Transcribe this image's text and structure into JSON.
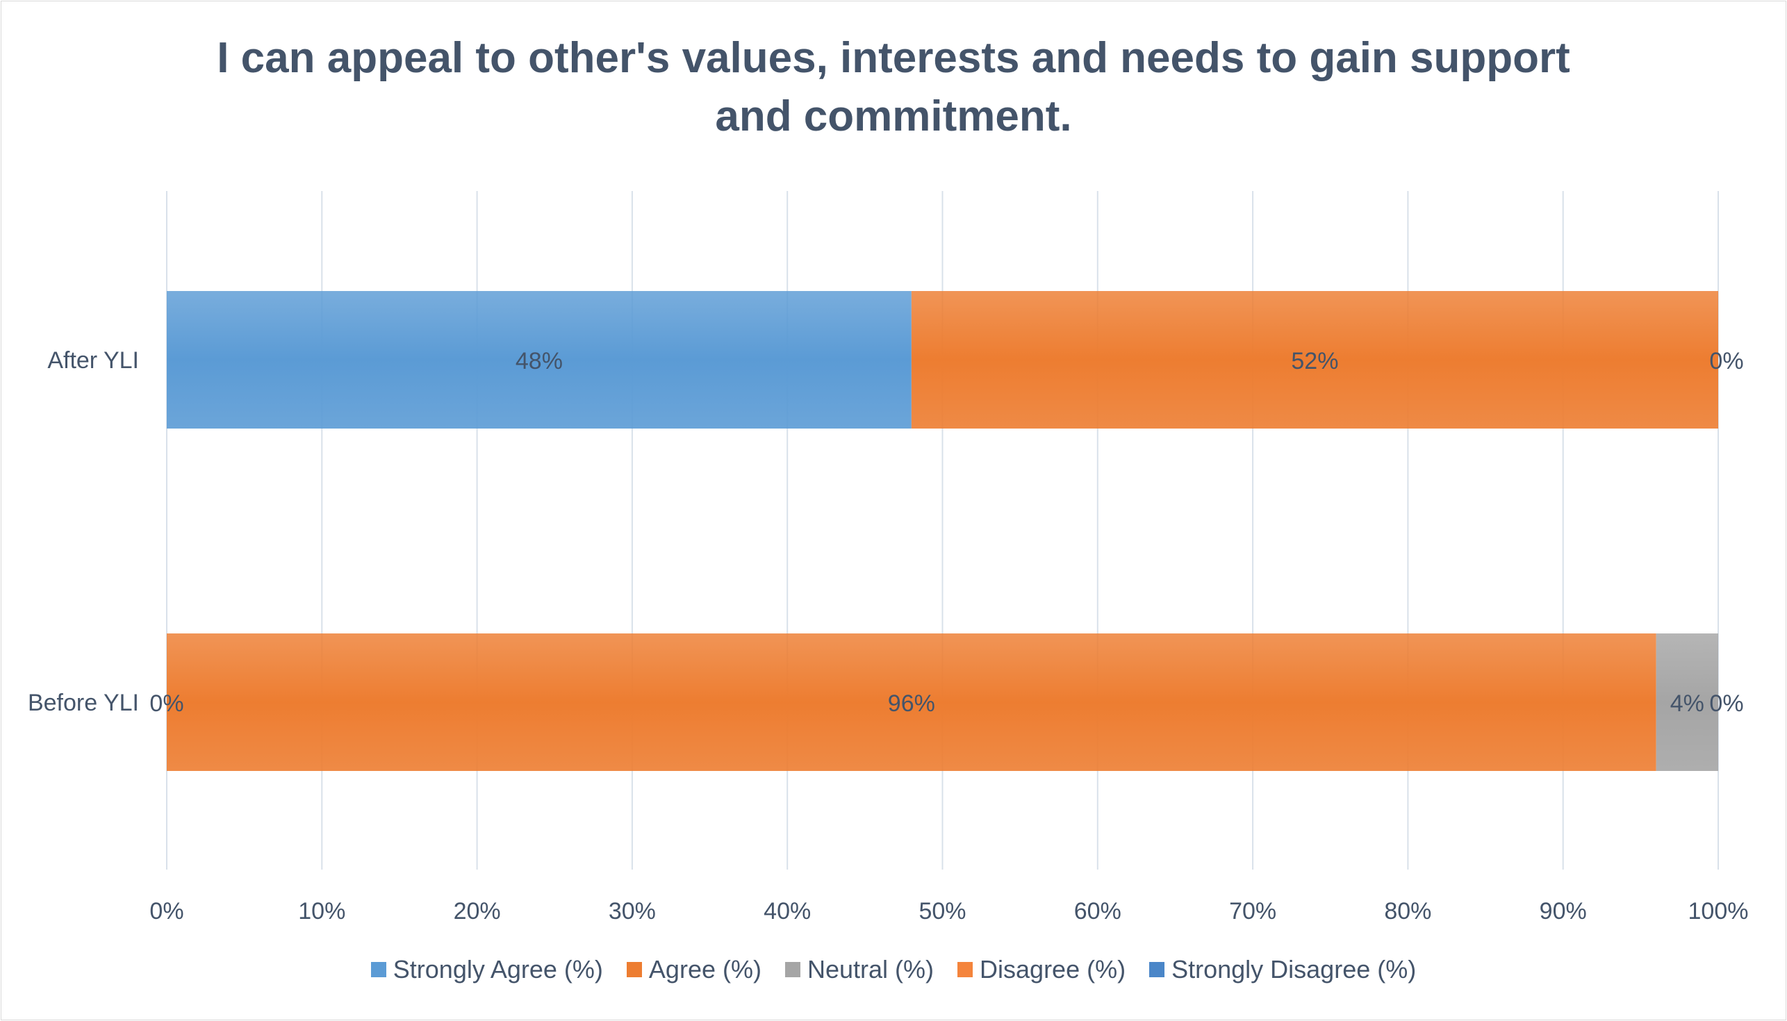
{
  "chart_data": {
    "type": "bar",
    "orientation": "horizontal",
    "stacked": "percent",
    "title": "I can appeal to other's values, interests and needs to gain support and commitment.",
    "title_lines": [
      "I can appeal to other's values, interests and needs to gain support",
      "and commitment."
    ],
    "categories": [
      "After YLI",
      "Before YLI"
    ],
    "series": [
      {
        "name": "Strongly Agree (%)",
        "values": [
          48,
          0
        ],
        "labels": [
          "48%",
          ""
        ],
        "color": "#5b9bd5"
      },
      {
        "name": "Agree (%)",
        "values": [
          52,
          96
        ],
        "labels": [
          "52%",
          "96%"
        ],
        "color": "#ed7d31"
      },
      {
        "name": "Neutral (%)",
        "values": [
          0,
          4
        ],
        "labels": [
          "",
          "4%"
        ],
        "color": "#a5a5a5"
      },
      {
        "name": "Disagree (%)",
        "values": [
          0,
          0
        ],
        "labels": [
          "",
          ""
        ],
        "color": "#f4843c"
      },
      {
        "name": "Strongly Disagree (%)",
        "values": [
          0,
          0
        ],
        "labels": [
          "0%",
          "0%"
        ],
        "color": "#4a86c8"
      }
    ],
    "extra_labels": {
      "Before YLI": "0%"
    },
    "xlim": [
      0,
      100
    ],
    "xticks": [
      "0%",
      "10%",
      "20%",
      "30%",
      "40%",
      "50%",
      "60%",
      "70%",
      "80%",
      "90%",
      "100%"
    ],
    "grid": true,
    "legend": "bottom"
  },
  "colors": {
    "text": "#44546a",
    "grid": "#d9e1ea"
  }
}
